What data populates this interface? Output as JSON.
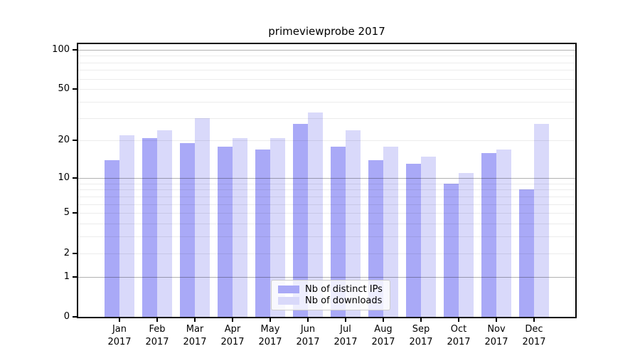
{
  "chart_data": {
    "type": "bar",
    "title": "primeviewprobe 2017",
    "categories": [
      "Jan",
      "Feb",
      "Mar",
      "Apr",
      "May",
      "Jun",
      "Jul",
      "Aug",
      "Sep",
      "Oct",
      "Nov",
      "Dec"
    ],
    "year": "2017",
    "series": [
      {
        "name": "Nb of distinct IPs",
        "color": "#a9a9f7",
        "values": [
          14,
          21,
          19,
          18,
          17,
          27,
          18,
          14,
          13,
          9,
          16,
          8
        ]
      },
      {
        "name": "Nb of downloads",
        "color": "#d9d9fa",
        "values": [
          22,
          24,
          30,
          21,
          21,
          33,
          24,
          18,
          15,
          11,
          17,
          27
        ]
      }
    ],
    "xlabel": "",
    "ylabel": "",
    "yscale": "log1p",
    "ylim": [
      0,
      110
    ],
    "ytick_values": [
      0,
      1,
      2,
      5,
      10,
      20,
      50,
      100
    ],
    "ytick_labels": [
      "0",
      "1",
      "2",
      "5",
      "10",
      "20",
      "50",
      "100"
    ],
    "major_grid_values": [
      1,
      10,
      100
    ],
    "minor_grid_values": [
      2,
      3,
      4,
      5,
      6,
      7,
      8,
      9,
      20,
      30,
      40,
      50,
      60,
      70,
      80,
      90
    ],
    "grid": "on",
    "legend_position": "lower center"
  }
}
